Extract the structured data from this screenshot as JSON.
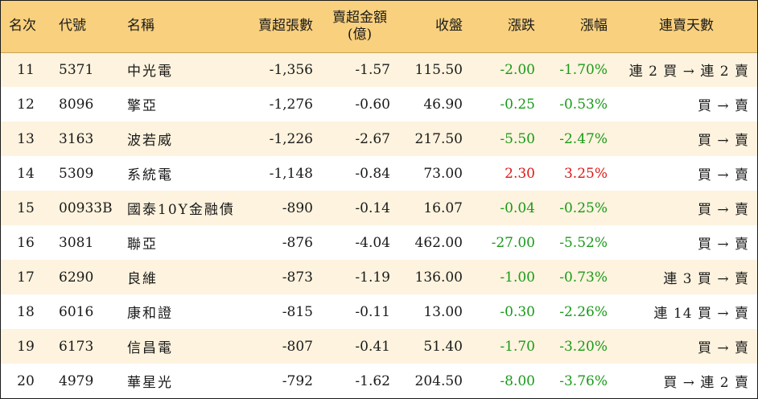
{
  "table": {
    "headers": [
      "名次",
      "代號",
      "名稱",
      "賣超張數",
      "賣超金額\n(億)",
      "收盤",
      "漲跌",
      "漲幅",
      "連賣天數"
    ],
    "rows": [
      {
        "rank": "11",
        "code": "5371",
        "name": "中光電",
        "shares": "-1,356",
        "amount": "-1.57",
        "close": "115.50",
        "change": "-2.00",
        "pct": "-1.70%",
        "streak": "連 2 買 → 連 2 賣"
      },
      {
        "rank": "12",
        "code": "8096",
        "name": "擎亞",
        "shares": "-1,276",
        "amount": "-0.60",
        "close": "46.90",
        "change": "-0.25",
        "pct": "-0.53%",
        "streak": "買 → 賣"
      },
      {
        "rank": "13",
        "code": "3163",
        "name": "波若威",
        "shares": "-1,226",
        "amount": "-2.67",
        "close": "217.50",
        "change": "-5.50",
        "pct": "-2.47%",
        "streak": "買 → 賣"
      },
      {
        "rank": "14",
        "code": "5309",
        "name": "系統電",
        "shares": "-1,148",
        "amount": "-0.84",
        "close": "73.00",
        "change": "2.30",
        "pct": "3.25%",
        "streak": "買 → 賣"
      },
      {
        "rank": "15",
        "code": "00933B",
        "name": "國泰10Y金融債",
        "shares": "-890",
        "amount": "-0.14",
        "close": "16.07",
        "change": "-0.04",
        "pct": "-0.25%",
        "streak": "買 → 賣"
      },
      {
        "rank": "16",
        "code": "3081",
        "name": "聯亞",
        "shares": "-876",
        "amount": "-4.04",
        "close": "462.00",
        "change": "-27.00",
        "pct": "-5.52%",
        "streak": "買 → 賣"
      },
      {
        "rank": "17",
        "code": "6290",
        "name": "良維",
        "shares": "-873",
        "amount": "-1.19",
        "close": "136.00",
        "change": "-1.00",
        "pct": "-0.73%",
        "streak": "連 3 買 → 賣"
      },
      {
        "rank": "18",
        "code": "6016",
        "name": "康和證",
        "shares": "-815",
        "amount": "-0.11",
        "close": "13.00",
        "change": "-0.30",
        "pct": "-2.26%",
        "streak": "連 14 買 → 賣"
      },
      {
        "rank": "19",
        "code": "6173",
        "name": "信昌電",
        "shares": "-807",
        "amount": "-0.41",
        "close": "51.40",
        "change": "-1.70",
        "pct": "-3.20%",
        "streak": "買 → 賣"
      },
      {
        "rank": "20",
        "code": "4979",
        "name": "華星光",
        "shares": "-792",
        "amount": "-1.62",
        "close": "204.50",
        "change": "-8.00",
        "pct": "-3.76%",
        "streak": "買 → 連 2 賣"
      }
    ]
  },
  "colors": {
    "header_bg": "#f9d07d",
    "odd_row_bg": "#fdf3de",
    "negative": "#1a9a1a",
    "positive": "#e01818"
  }
}
